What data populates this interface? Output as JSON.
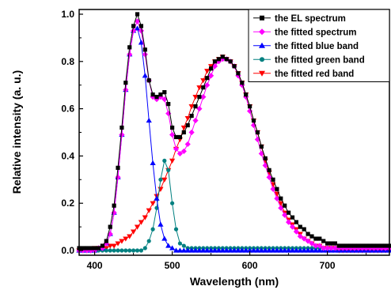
{
  "chart_data": {
    "type": "line",
    "title": "",
    "xlabel": "Wavelength (nm)",
    "ylabel": "Relative intensity (a. u.)",
    "xlim": [
      380,
      780
    ],
    "ylim": [
      -0.02,
      1.02
    ],
    "xticks": [
      400,
      500,
      600,
      700
    ],
    "yticks": [
      0.0,
      0.2,
      0.4,
      0.6,
      0.8,
      1.0
    ],
    "xtick_labels": [
      "400",
      "500",
      "600",
      "700"
    ],
    "ytick_labels": [
      "0.0",
      "0.2",
      "0.4",
      "0.6",
      "0.8",
      "1.0"
    ],
    "grid": false,
    "legend_position": "top-right",
    "series": [
      {
        "name": "the EL spectrum",
        "color": "#000000",
        "marker": "square",
        "x": [
          380,
          385,
          390,
          395,
          400,
          405,
          410,
          415,
          420,
          425,
          430,
          435,
          440,
          445,
          450,
          455,
          460,
          465,
          470,
          475,
          480,
          485,
          490,
          495,
          500,
          505,
          510,
          515,
          520,
          525,
          530,
          535,
          540,
          545,
          550,
          555,
          560,
          565,
          570,
          575,
          580,
          585,
          590,
          595,
          600,
          605,
          610,
          615,
          620,
          625,
          630,
          635,
          640,
          645,
          650,
          655,
          660,
          665,
          670,
          675,
          680,
          685,
          690,
          695,
          700,
          705,
          710,
          715,
          720,
          725,
          730,
          735,
          740,
          745,
          750,
          755,
          760,
          765,
          770,
          775,
          780
        ],
        "y": [
          0.01,
          0.01,
          0.01,
          0.01,
          0.01,
          0.01,
          0.02,
          0.04,
          0.1,
          0.19,
          0.35,
          0.52,
          0.71,
          0.86,
          0.95,
          1.0,
          0.95,
          0.85,
          0.72,
          0.66,
          0.65,
          0.66,
          0.67,
          0.62,
          0.52,
          0.48,
          0.48,
          0.5,
          0.53,
          0.57,
          0.61,
          0.65,
          0.69,
          0.73,
          0.77,
          0.8,
          0.81,
          0.82,
          0.81,
          0.8,
          0.78,
          0.75,
          0.71,
          0.66,
          0.61,
          0.55,
          0.5,
          0.44,
          0.39,
          0.34,
          0.3,
          0.26,
          0.22,
          0.19,
          0.16,
          0.14,
          0.12,
          0.1,
          0.09,
          0.07,
          0.06,
          0.05,
          0.05,
          0.04,
          0.03,
          0.03,
          0.03,
          0.02,
          0.02,
          0.02,
          0.02,
          0.02,
          0.02,
          0.02,
          0.02,
          0.02,
          0.02,
          0.02,
          0.02,
          0.02,
          0.02
        ]
      },
      {
        "name": "the fitted spectrum",
        "color": "#ff00ff",
        "marker": "diamond",
        "x": [
          380,
          385,
          390,
          395,
          400,
          405,
          410,
          415,
          420,
          425,
          430,
          435,
          440,
          445,
          450,
          455,
          460,
          465,
          470,
          475,
          480,
          485,
          490,
          495,
          500,
          505,
          510,
          515,
          520,
          525,
          530,
          535,
          540,
          545,
          550,
          555,
          560,
          565,
          570,
          575,
          580,
          585,
          590,
          595,
          600,
          605,
          610,
          615,
          620,
          625,
          630,
          635,
          640,
          645,
          650,
          655,
          660,
          665,
          670,
          675,
          680,
          685,
          690,
          695,
          700,
          705,
          710,
          715,
          720,
          725,
          730,
          735,
          740,
          745,
          750,
          755,
          760,
          765,
          770,
          775,
          780
        ],
        "y": [
          0.0,
          0.0,
          0.0,
          0.0,
          0.0,
          0.01,
          0.01,
          0.03,
          0.07,
          0.16,
          0.31,
          0.49,
          0.68,
          0.83,
          0.93,
          0.97,
          0.93,
          0.83,
          0.72,
          0.65,
          0.64,
          0.65,
          0.64,
          0.58,
          0.49,
          0.43,
          0.41,
          0.42,
          0.45,
          0.5,
          0.55,
          0.6,
          0.65,
          0.7,
          0.74,
          0.78,
          0.8,
          0.81,
          0.81,
          0.8,
          0.78,
          0.74,
          0.7,
          0.65,
          0.59,
          0.53,
          0.47,
          0.41,
          0.36,
          0.31,
          0.26,
          0.22,
          0.18,
          0.15,
          0.12,
          0.1,
          0.08,
          0.06,
          0.05,
          0.04,
          0.03,
          0.02,
          0.02,
          0.01,
          0.01,
          0.01,
          0.01,
          0.01,
          0.01,
          0.01,
          0.01,
          0.01,
          0.01,
          0.01,
          0.01,
          0.01,
          0.01,
          0.01,
          0.01,
          0.01,
          0.01
        ]
      },
      {
        "name": "the fitted blue band",
        "color": "#0000ff",
        "marker": "triangle-up",
        "x": [
          380,
          385,
          390,
          395,
          400,
          405,
          410,
          415,
          420,
          425,
          430,
          435,
          440,
          445,
          450,
          455,
          460,
          465,
          470,
          475,
          480,
          485,
          490,
          495,
          500,
          505,
          510,
          515,
          520,
          525,
          530,
          535,
          540,
          545,
          550,
          555,
          560,
          565,
          570,
          575,
          580,
          585,
          590,
          595,
          600,
          605,
          610,
          615,
          620,
          625,
          630,
          635,
          640,
          645,
          650,
          655,
          660,
          665,
          670,
          675,
          680,
          685,
          690,
          695,
          700,
          705,
          710,
          715,
          720,
          725,
          730,
          735,
          740,
          745,
          750,
          755,
          760,
          765,
          770,
          775,
          780
        ],
        "y": [
          0.0,
          0.0,
          0.0,
          0.0,
          0.0,
          0.01,
          0.01,
          0.03,
          0.07,
          0.16,
          0.31,
          0.49,
          0.68,
          0.83,
          0.93,
          0.94,
          0.88,
          0.74,
          0.55,
          0.37,
          0.22,
          0.11,
          0.05,
          0.02,
          0.01,
          0.0,
          0.0,
          0.0,
          0.0,
          0.0,
          0.0,
          0.0,
          0.0,
          0.0,
          0.0,
          0.0,
          0.0,
          0.0,
          0.0,
          0.0,
          0.0,
          0.0,
          0.0,
          0.0,
          0.0,
          0.0,
          0.0,
          0.0,
          0.0,
          0.0,
          0.0,
          0.0,
          0.0,
          0.0,
          0.0,
          0.0,
          0.0,
          0.0,
          0.0,
          0.0,
          0.0,
          0.0,
          0.0,
          0.0,
          0.0,
          0.0,
          0.0,
          0.0,
          0.0,
          0.0,
          0.0,
          0.0,
          0.0,
          0.0,
          0.0,
          0.0,
          0.0,
          0.0,
          0.0,
          0.0,
          0.0
        ]
      },
      {
        "name": "the fitted green band",
        "color": "#008080",
        "marker": "circle",
        "x": [
          380,
          385,
          390,
          395,
          400,
          405,
          410,
          415,
          420,
          425,
          430,
          435,
          440,
          445,
          450,
          455,
          460,
          465,
          470,
          475,
          480,
          485,
          490,
          495,
          500,
          505,
          510,
          515,
          520,
          525,
          530,
          535,
          540,
          545,
          550,
          555,
          560,
          565,
          570,
          575,
          580,
          585,
          590,
          595,
          600,
          605,
          610,
          615,
          620,
          625,
          630,
          635,
          640,
          645,
          650,
          655,
          660,
          665,
          670,
          675,
          680,
          685,
          690,
          695,
          700,
          705,
          710,
          715,
          720,
          725,
          730,
          735,
          740,
          745,
          750,
          755,
          760,
          765,
          770,
          775,
          780
        ],
        "y": [
          0.0,
          0.0,
          0.0,
          0.0,
          0.0,
          0.0,
          0.0,
          0.0,
          0.0,
          0.0,
          0.0,
          0.0,
          0.0,
          0.0,
          0.0,
          0.0,
          0.0,
          0.01,
          0.04,
          0.09,
          0.18,
          0.3,
          0.38,
          0.34,
          0.2,
          0.09,
          0.03,
          0.02,
          0.01,
          0.01,
          0.01,
          0.01,
          0.01,
          0.01,
          0.01,
          0.01,
          0.01,
          0.01,
          0.01,
          0.01,
          0.01,
          0.01,
          0.01,
          0.01,
          0.01,
          0.01,
          0.01,
          0.01,
          0.01,
          0.01,
          0.01,
          0.01,
          0.01,
          0.01,
          0.01,
          0.01,
          0.01,
          0.01,
          0.01,
          0.01,
          0.01,
          0.01,
          0.01,
          0.01,
          0.01,
          0.01,
          0.01,
          0.01,
          0.01,
          0.01,
          0.01,
          0.01,
          0.01,
          0.01,
          0.01,
          0.01,
          0.01,
          0.01,
          0.01,
          0.01,
          0.01
        ]
      },
      {
        "name": "the fitted red band",
        "color": "#ff0000",
        "marker": "triangle-down",
        "x": [
          380,
          385,
          390,
          395,
          400,
          405,
          410,
          415,
          420,
          425,
          430,
          435,
          440,
          445,
          450,
          455,
          460,
          465,
          470,
          475,
          480,
          485,
          490,
          495,
          500,
          505,
          510,
          515,
          520,
          525,
          530,
          535,
          540,
          545,
          550,
          555,
          560,
          565,
          570,
          575,
          580,
          585,
          590,
          595,
          600,
          605,
          610,
          615,
          620,
          625,
          630,
          635,
          640,
          645,
          650,
          655,
          660,
          665,
          670,
          675,
          680,
          685,
          690,
          695,
          700,
          705,
          710,
          715,
          720,
          725,
          730,
          735,
          740,
          745,
          750,
          755,
          760,
          765,
          770,
          775,
          780
        ],
        "y": [
          0.0,
          0.0,
          0.0,
          0.0,
          0.01,
          0.01,
          0.01,
          0.01,
          0.02,
          0.02,
          0.03,
          0.04,
          0.05,
          0.06,
          0.08,
          0.1,
          0.12,
          0.14,
          0.17,
          0.2,
          0.23,
          0.26,
          0.3,
          0.34,
          0.38,
          0.43,
          0.47,
          0.52,
          0.56,
          0.61,
          0.65,
          0.69,
          0.72,
          0.76,
          0.78,
          0.8,
          0.81,
          0.82,
          0.81,
          0.8,
          0.78,
          0.75,
          0.71,
          0.66,
          0.61,
          0.55,
          0.5,
          0.44,
          0.38,
          0.33,
          0.28,
          0.24,
          0.2,
          0.16,
          0.13,
          0.11,
          0.09,
          0.07,
          0.05,
          0.04,
          0.03,
          0.02,
          0.02,
          0.01,
          0.01,
          0.01,
          0.01,
          0.0,
          0.0,
          0.0,
          0.0,
          0.0,
          0.0,
          0.0,
          0.0,
          0.0,
          0.0,
          0.0,
          0.0,
          0.0,
          0.0
        ]
      }
    ]
  }
}
